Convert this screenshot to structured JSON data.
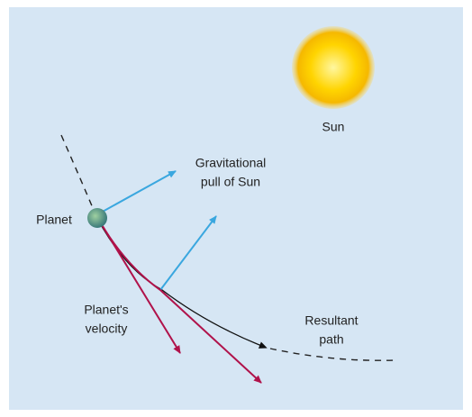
{
  "labels": {
    "sun": "Sun",
    "gravity": [
      "Gravitational",
      "pull of Sun"
    ],
    "planet": "Planet",
    "velocity": [
      "Planet's",
      "velocity"
    ],
    "path": [
      "Resultant",
      "path"
    ]
  }
}
